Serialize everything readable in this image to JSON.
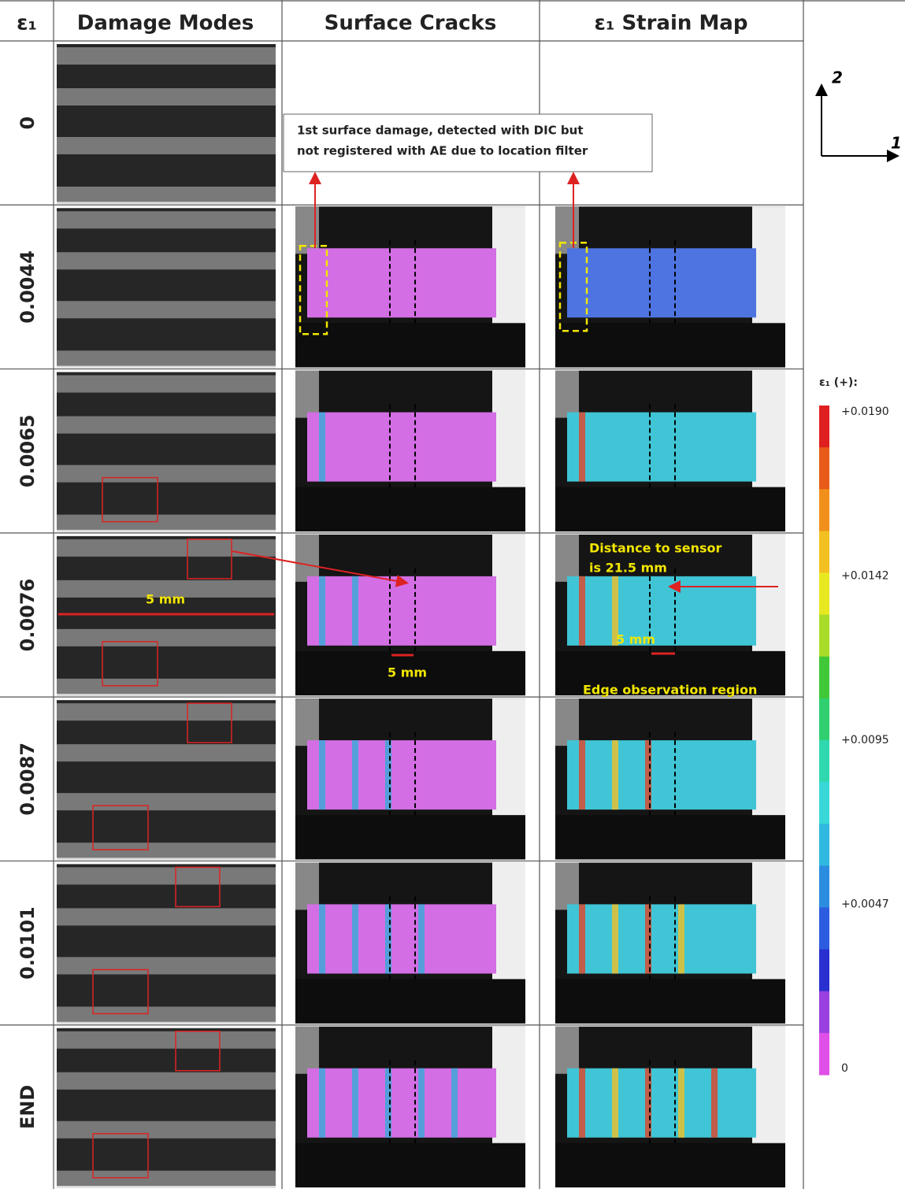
{
  "header": {
    "columns": [
      "ε₁",
      "Damage Modes",
      "Surface Cracks",
      "ε₁ Strain Map"
    ]
  },
  "rows": [
    {
      "label": "0"
    },
    {
      "label": "0.0044"
    },
    {
      "label": "0.0065"
    },
    {
      "label": "0.0076"
    },
    {
      "label": "0.0087"
    },
    {
      "label": "0.0101"
    },
    {
      "label": "END"
    }
  ],
  "annotations": {
    "first_damage": [
      "1st surface damage, detected with DIC but",
      "not registered with AE due to location filter"
    ],
    "scale_damage": "5 mm",
    "scale_cracks": "5 mm",
    "scale_strain": "5 mm",
    "distance": [
      "Distance to sensor",
      "is 21.5 mm"
    ],
    "edge_region": "Edge observation region"
  },
  "axes": {
    "axis_2": "2",
    "axis_1": "1"
  },
  "colorbar": {
    "title": "ε₁ (+):",
    "labels": [
      "+0.0190",
      "+0.0142",
      "+0.0095",
      "+0.0047",
      "0"
    ]
  }
}
